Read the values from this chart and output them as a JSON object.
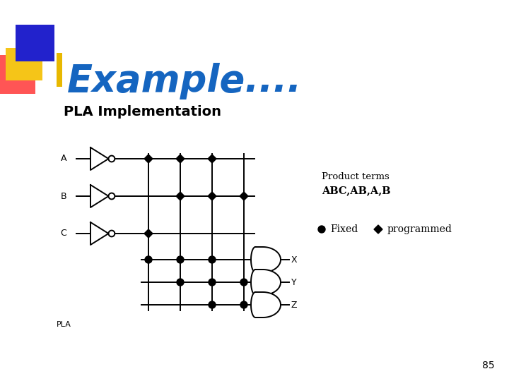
{
  "title": "Example....",
  "subtitle": "PLA Implementation",
  "title_color": "#1565C0",
  "subtitle_color": "#000000",
  "bg_color": "#ffffff",
  "input_labels": [
    "A",
    "B",
    "C"
  ],
  "output_labels": [
    "X",
    "Y",
    "Z"
  ],
  "pla_label": "PLA",
  "product_terms_label": "Product terms",
  "product_terms": "ABC,AB,A,B",
  "legend_fixed": "Fixed",
  "legend_programmed": "programmed",
  "page_number": "85"
}
